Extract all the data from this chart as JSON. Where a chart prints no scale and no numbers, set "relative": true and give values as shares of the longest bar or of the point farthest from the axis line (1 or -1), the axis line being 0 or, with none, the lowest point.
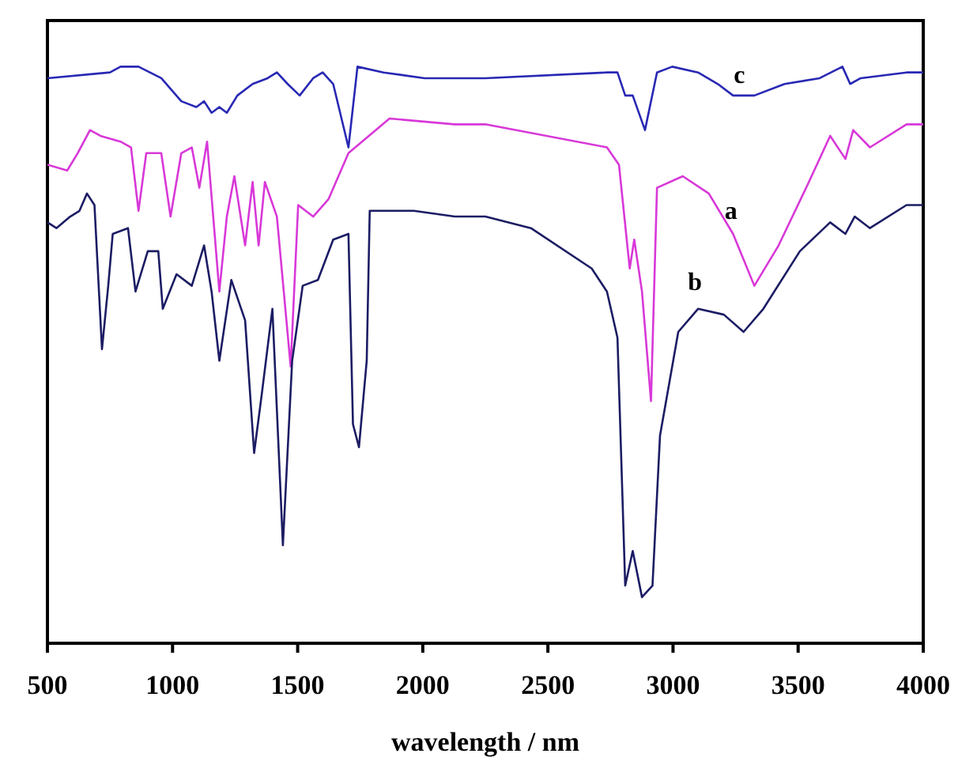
{
  "chart_data": {
    "type": "line",
    "xlabel": "wavelength / nm",
    "relative": true,
    "xlim": [
      500,
      4000
    ],
    "xticks": [
      500,
      1000,
      1500,
      2000,
      2500,
      3000,
      3500,
      4000
    ],
    "grid": false,
    "legend": false,
    "marker": "none",
    "line_style": "solid",
    "series": [
      {
        "name": "a",
        "color": "#d838d8",
        "x": [
          500,
          579,
          621,
          670,
          712,
          792,
          834,
          864,
          895,
          955,
          992,
          1035,
          1077,
          1107,
          1138,
          1187,
          1217,
          1247,
          1290,
          1320,
          1344,
          1369,
          1417,
          1472,
          1502,
          1562,
          1623,
          1703,
          1867,
          2128,
          2250,
          2736,
          2784,
          2827,
          2845,
          2876,
          2912,
          2936,
          3039,
          3143,
          3240,
          3325,
          3422,
          3543,
          3628,
          3689,
          3720,
          3787,
          3933,
          4000
        ],
        "values": [
          0.83,
          0.82,
          0.85,
          0.89,
          0.88,
          0.87,
          0.86,
          0.75,
          0.85,
          0.85,
          0.74,
          0.85,
          0.86,
          0.79,
          0.87,
          0.61,
          0.74,
          0.81,
          0.69,
          0.8,
          0.69,
          0.8,
          0.74,
          0.48,
          0.76,
          0.74,
          0.77,
          0.85,
          0.91,
          0.9,
          0.9,
          0.86,
          0.83,
          0.65,
          0.7,
          0.61,
          0.42,
          0.79,
          0.81,
          0.78,
          0.71,
          0.62,
          0.69,
          0.8,
          0.88,
          0.84,
          0.89,
          0.86,
          0.9,
          0.9
        ]
      },
      {
        "name": "b",
        "color": "#1c1c64",
        "x": [
          500,
          536,
          591,
          628,
          658,
          688,
          718,
          743,
          761,
          822,
          852,
          901,
          943,
          961,
          1016,
          1077,
          1126,
          1156,
          1187,
          1235,
          1290,
          1326,
          1356,
          1399,
          1441,
          1478,
          1520,
          1581,
          1642,
          1703,
          1721,
          1745,
          1776,
          1788,
          1843,
          1964,
          2128,
          2250,
          2432,
          2675,
          2736,
          2778,
          2809,
          2839,
          2876,
          2918,
          2948,
          3021,
          3100,
          3203,
          3282,
          3361,
          3507,
          3628,
          3689,
          3726,
          3787,
          3933,
          4000
        ],
        "values": [
          0.73,
          0.72,
          0.74,
          0.75,
          0.78,
          0.76,
          0.51,
          0.62,
          0.71,
          0.72,
          0.61,
          0.68,
          0.68,
          0.58,
          0.64,
          0.62,
          0.69,
          0.61,
          0.49,
          0.63,
          0.56,
          0.33,
          0.43,
          0.58,
          0.17,
          0.49,
          0.62,
          0.63,
          0.7,
          0.71,
          0.38,
          0.34,
          0.49,
          0.75,
          0.75,
          0.75,
          0.74,
          0.74,
          0.72,
          0.65,
          0.61,
          0.53,
          0.1,
          0.16,
          0.08,
          0.1,
          0.36,
          0.54,
          0.58,
          0.57,
          0.54,
          0.58,
          0.68,
          0.73,
          0.71,
          0.74,
          0.72,
          0.76,
          0.76
        ]
      },
      {
        "name": "c",
        "color": "#2828b4",
        "x": [
          500,
          750,
          792,
          864,
          955,
          1035,
          1095,
          1126,
          1156,
          1187,
          1217,
          1259,
          1320,
          1380,
          1417,
          1460,
          1508,
          1562,
          1600,
          1642,
          1703,
          1739,
          1843,
          2007,
          2128,
          2250,
          2736,
          2778,
          2809,
          2839,
          2888,
          2936,
          2997,
          3100,
          3179,
          3240,
          3325,
          3446,
          3586,
          3677,
          3708,
          3750,
          3933,
          4000
        ],
        "values": [
          0.98,
          0.99,
          1,
          1,
          0.98,
          0.94,
          0.93,
          0.94,
          0.92,
          0.93,
          0.92,
          0.95,
          0.97,
          0.98,
          0.99,
          0.97,
          0.95,
          0.98,
          0.99,
          0.97,
          0.86,
          1,
          0.99,
          0.98,
          0.98,
          0.98,
          0.99,
          0.99,
          0.95,
          0.95,
          0.89,
          0.99,
          1,
          0.99,
          0.97,
          0.95,
          0.95,
          0.97,
          0.98,
          1,
          0.97,
          0.98,
          0.99,
          0.99
        ]
      }
    ]
  }
}
